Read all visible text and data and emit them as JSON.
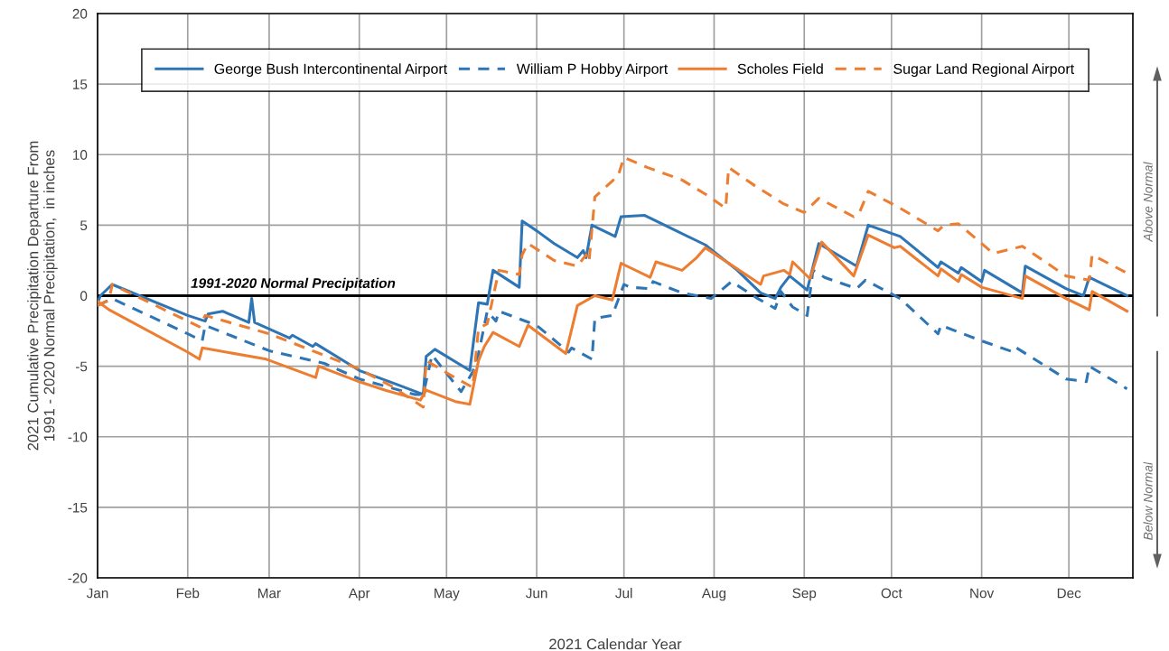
{
  "chart_data": {
    "type": "line",
    "xlabel": "2021 Calendar Year",
    "ylabel": "2021 Cumulative Precipitation Departure From\n1991 - 2020 Normal Precipitation,  in inches",
    "xlim": [
      "2021-01-01",
      "2021-12-23"
    ],
    "xticks": [
      {
        "value": "2021-01-01",
        "label": "Jan"
      },
      {
        "value": "2021-02-01",
        "label": "Feb"
      },
      {
        "value": "2021-03-01",
        "label": "Mar"
      },
      {
        "value": "2021-04-01",
        "label": "Apr"
      },
      {
        "value": "2021-05-01",
        "label": "May"
      },
      {
        "value": "2021-06-01",
        "label": "Jun"
      },
      {
        "value": "2021-07-01",
        "label": "Jul"
      },
      {
        "value": "2021-08-01",
        "label": "Aug"
      },
      {
        "value": "2021-09-01",
        "label": "Sep"
      },
      {
        "value": "2021-10-01",
        "label": "Oct"
      },
      {
        "value": "2021-11-01",
        "label": "Nov"
      },
      {
        "value": "2021-12-01",
        "label": "Dec"
      }
    ],
    "ylim": [
      -20,
      20
    ],
    "yticks": [
      -20,
      -15,
      -10,
      -5,
      0,
      5,
      10,
      15,
      20
    ],
    "grid": true,
    "legend": "top",
    "marker": "none",
    "ref_lines": [
      {
        "axis": "y",
        "value": 0,
        "label": "1991-2020 Normal Precipitation",
        "color": "#000000",
        "line_style": "solid"
      }
    ],
    "annotations": [
      "Above Normal",
      "Below Normal"
    ],
    "series": [
      {
        "name": "George Bush Intercontinental Airport",
        "color": "#2e75b6",
        "line_style": "solid",
        "x": [
          "2021-01-01",
          "2021-01-02",
          "2021-01-06",
          "2021-02-01",
          "2021-02-07",
          "2021-02-08",
          "2021-02-13",
          "2021-02-22",
          "2021-02-23",
          "2021-02-24",
          "2021-03-08",
          "2021-03-09",
          "2021-03-16",
          "2021-03-17",
          "2021-04-01",
          "2021-04-14",
          "2021-04-23",
          "2021-04-24",
          "2021-04-27",
          "2021-05-09",
          "2021-05-12",
          "2021-05-15",
          "2021-05-17",
          "2021-05-26",
          "2021-05-27",
          "2021-06-01",
          "2021-06-07",
          "2021-06-15",
          "2021-06-17",
          "2021-06-18",
          "2021-06-20",
          "2021-06-28",
          "2021-06-30",
          "2021-07-08",
          "2021-07-29",
          "2021-08-09",
          "2021-08-17",
          "2021-08-22",
          "2021-08-24",
          "2021-08-27",
          "2021-09-02",
          "2021-09-06",
          "2021-09-19",
          "2021-09-23",
          "2021-10-04",
          "2021-10-17",
          "2021-10-18",
          "2021-10-24",
          "2021-10-25",
          "2021-11-01",
          "2021-11-02",
          "2021-11-15",
          "2021-11-16",
          "2021-11-30",
          "2021-12-06",
          "2021-12-08",
          "2021-12-21"
        ],
        "values": [
          -0.5,
          0,
          0.8,
          -1.4,
          -1.8,
          -1.3,
          -1.1,
          -1.9,
          -0.2,
          -1.9,
          -3.0,
          -2.8,
          -3.6,
          -3.4,
          -5.3,
          -6.3,
          -7.0,
          -4.3,
          -3.8,
          -5.3,
          -0.5,
          -0.6,
          1.8,
          0.6,
          5.3,
          4.6,
          3.7,
          2.7,
          3.2,
          2.7,
          5.0,
          4.2,
          5.6,
          5.7,
          3.6,
          1.8,
          0.2,
          -0.2,
          0.6,
          1.4,
          0.4,
          3.7,
          2.1,
          5.0,
          4.2,
          2.0,
          2.4,
          1.6,
          2.0,
          1.0,
          1.8,
          0.2,
          2.1,
          0.5,
          0.0,
          1.3,
          0.0
        ]
      },
      {
        "name": "William P Hobby Airport",
        "color": "#2e75b6",
        "line_style": "dashed",
        "x": [
          "2021-01-01",
          "2021-01-06",
          "2021-02-01",
          "2021-02-06",
          "2021-02-07",
          "2021-03-01",
          "2021-03-20",
          "2021-04-01",
          "2021-04-20",
          "2021-04-23",
          "2021-04-26",
          "2021-05-06",
          "2021-05-10",
          "2021-05-12",
          "2021-05-15",
          "2021-05-18",
          "2021-05-19",
          "2021-06-01",
          "2021-06-12",
          "2021-06-13",
          "2021-06-20",
          "2021-06-21",
          "2021-06-27",
          "2021-07-01",
          "2021-07-03",
          "2021-07-10",
          "2021-07-11",
          "2021-07-21",
          "2021-07-31",
          "2021-08-07",
          "2021-08-16",
          "2021-08-22",
          "2021-08-24",
          "2021-08-28",
          "2021-09-02",
          "2021-09-04",
          "2021-09-08",
          "2021-09-19",
          "2021-09-22",
          "2021-10-04",
          "2021-10-17",
          "2021-10-18",
          "2021-11-01",
          "2021-11-12",
          "2021-11-13",
          "2021-11-30",
          "2021-12-07",
          "2021-12-08",
          "2021-12-21"
        ],
        "values": [
          -0.7,
          -0.2,
          -2.7,
          -3.2,
          -2.1,
          -3.9,
          -4.8,
          -5.9,
          -7.0,
          -7.0,
          -4.2,
          -6.8,
          -5.4,
          -4.1,
          -1.1,
          -1.8,
          -1.1,
          -2.1,
          -4.0,
          -3.7,
          -4.5,
          -1.6,
          -1.4,
          0.8,
          0.6,
          0.5,
          1.0,
          0.2,
          -0.2,
          1.0,
          -0.2,
          -0.9,
          0.3,
          -0.8,
          -1.4,
          1.8,
          1.3,
          0.5,
          1.1,
          -0.2,
          -2.7,
          -2.1,
          -3.2,
          -4.0,
          -3.7,
          -5.9,
          -6.1,
          -5.0,
          -6.6
        ]
      },
      {
        "name": "Scholes Field",
        "color": "#ed7d31",
        "line_style": "solid",
        "x": [
          "2021-01-01",
          "2021-01-05",
          "2021-02-01",
          "2021-02-05",
          "2021-02-06",
          "2021-02-28",
          "2021-03-17",
          "2021-03-18",
          "2021-04-01",
          "2021-04-10",
          "2021-04-22",
          "2021-04-24",
          "2021-05-04",
          "2021-05-09",
          "2021-05-12",
          "2021-05-14",
          "2021-05-17",
          "2021-05-26",
          "2021-05-29",
          "2021-06-11",
          "2021-06-15",
          "2021-06-21",
          "2021-06-27",
          "2021-06-30",
          "2021-07-03",
          "2021-07-10",
          "2021-07-12",
          "2021-07-21",
          "2021-07-26",
          "2021-07-29",
          "2021-08-17",
          "2021-08-18",
          "2021-08-25",
          "2021-08-27",
          "2021-08-28",
          "2021-09-03",
          "2021-09-07",
          "2021-09-18",
          "2021-09-23",
          "2021-10-02",
          "2021-10-04",
          "2021-10-17",
          "2021-10-18",
          "2021-10-24",
          "2021-10-25",
          "2021-11-01",
          "2021-11-15",
          "2021-11-16",
          "2021-11-30",
          "2021-12-08",
          "2021-12-09",
          "2021-12-21"
        ],
        "values": [
          -0.4,
          -1.0,
          -4.0,
          -4.5,
          -3.7,
          -4.5,
          -5.8,
          -5.0,
          -6.1,
          -6.7,
          -7.4,
          -6.7,
          -7.5,
          -7.7,
          -4.6,
          -3.6,
          -2.6,
          -3.6,
          -2.1,
          -4.1,
          -0.7,
          0.0,
          -0.3,
          2.3,
          2.0,
          1.3,
          2.4,
          1.8,
          2.7,
          3.4,
          0.8,
          1.4,
          1.8,
          1.5,
          2.4,
          1.2,
          3.8,
          1.4,
          4.3,
          3.4,
          3.5,
          1.4,
          1.9,
          1.0,
          1.5,
          0.6,
          -0.2,
          1.4,
          -0.2,
          -1.0,
          0.3,
          -1.1
        ]
      },
      {
        "name": "Sugar Land Regional Airport",
        "color": "#ed7d31",
        "line_style": "dashed",
        "x": [
          "2021-01-01",
          "2021-01-05",
          "2021-01-06",
          "2021-02-01",
          "2021-02-05",
          "2021-02-07",
          "2021-03-01",
          "2021-04-01",
          "2021-04-12",
          "2021-04-23",
          "2021-04-24",
          "2021-05-03",
          "2021-05-10",
          "2021-05-12",
          "2021-05-15",
          "2021-05-19",
          "2021-05-26",
          "2021-05-27",
          "2021-05-29",
          "2021-06-07",
          "2021-06-15",
          "2021-06-18",
          "2021-06-19",
          "2021-06-21",
          "2021-06-29",
          "2021-07-01",
          "2021-07-09",
          "2021-07-21",
          "2021-07-29",
          "2021-08-05",
          "2021-08-06",
          "2021-08-15",
          "2021-08-25",
          "2021-09-01",
          "2021-09-06",
          "2021-09-18",
          "2021-09-20",
          "2021-09-23",
          "2021-10-04",
          "2021-10-17",
          "2021-10-19",
          "2021-10-24",
          "2021-11-05",
          "2021-11-15",
          "2021-11-30",
          "2021-12-08",
          "2021-12-09",
          "2021-12-21"
        ],
        "values": [
          -0.7,
          -0.3,
          0.8,
          -1.8,
          -2.2,
          -1.4,
          -2.7,
          -5.2,
          -6.4,
          -7.9,
          -4.6,
          -5.7,
          -6.5,
          -2.3,
          -2.0,
          1.8,
          1.5,
          2.9,
          3.7,
          2.5,
          2.1,
          2.9,
          2.4,
          7.0,
          8.5,
          9.8,
          9.1,
          8.2,
          7.2,
          6.2,
          9.1,
          7.8,
          6.5,
          5.9,
          6.9,
          5.6,
          5.9,
          7.4,
          6.2,
          4.6,
          5.0,
          5.1,
          3.0,
          3.5,
          1.4,
          1.1,
          2.9,
          1.6
        ]
      }
    ]
  }
}
